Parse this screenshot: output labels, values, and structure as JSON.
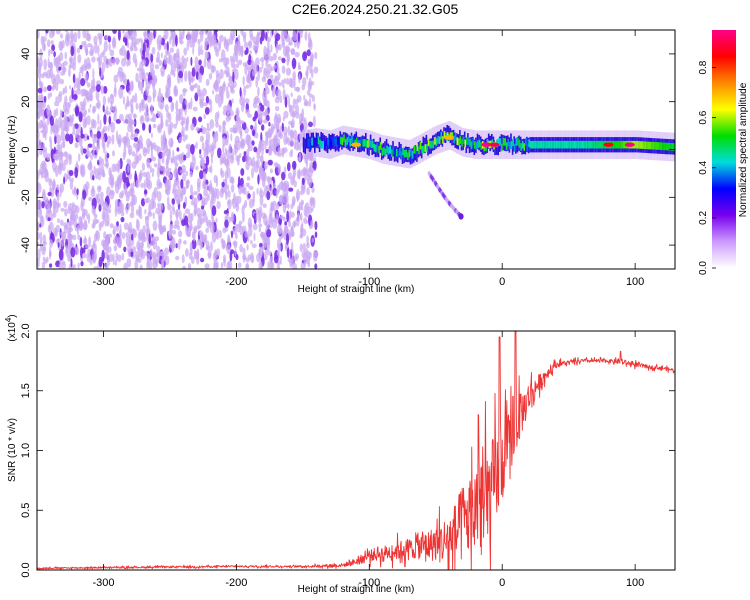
{
  "title": "C2E6.2024.250.21.32.G05",
  "colors": {
    "snr_line": "#ee3333",
    "spectrogram_low": "#e6d6f6",
    "spectrogram_mid": "#7722dd",
    "spectrogram_peak": "#ff2222",
    "axis": "#000000"
  },
  "chart_data": [
    {
      "type": "heatmap",
      "title": "C2E6.2024.250.21.32.G05",
      "xlabel": "Height of straight line (km)",
      "ylabel": "Frequency (Hz)",
      "xlim": [
        -350,
        130
      ],
      "ylim": [
        -50,
        50
      ],
      "x_ticks": [
        -300,
        -200,
        -100,
        0,
        100
      ],
      "y_ticks": [
        -40,
        -20,
        0,
        20,
        40
      ],
      "grid": false,
      "colorbar": {
        "label": "Normalized spectral amplitude",
        "range": [
          0,
          0.95
        ],
        "ticks": [
          0.0,
          0.2,
          0.4,
          0.6,
          0.8
        ],
        "colormap": [
          "#ffffff",
          "#cc99ff",
          "#7700ee",
          "#0000ff",
          "#00dddd",
          "#00dd00",
          "#ffff00",
          "#ff8800",
          "#ff0000",
          "#ff0088"
        ]
      },
      "noise_region": {
        "x_range": [
          -350,
          -140
        ],
        "y_range": [
          -50,
          50
        ],
        "amplitude": [
          0.05,
          0.2
        ]
      },
      "signal_track": {
        "x": [
          -150,
          -140,
          -130,
          -120,
          -110,
          -100,
          -90,
          -80,
          -70,
          -60,
          -50,
          -40,
          -30,
          -20,
          -10,
          0,
          20,
          40,
          60,
          80,
          100,
          130
        ],
        "frequency": [
          2,
          3,
          2,
          4,
          3,
          2,
          0,
          -1,
          -2,
          1,
          4,
          6,
          3,
          2,
          2,
          2,
          2,
          2,
          2,
          2,
          2,
          1
        ],
        "amplitude": [
          0.25,
          0.4,
          0.4,
          0.45,
          0.45,
          0.5,
          0.45,
          0.45,
          0.45,
          0.5,
          0.5,
          0.5,
          0.5,
          0.5,
          0.55,
          0.5,
          0.45,
          0.45,
          0.45,
          0.5,
          0.6,
          0.5
        ]
      },
      "hot_spots": [
        {
          "x": -110,
          "frequency": 2,
          "amplitude": 0.7
        },
        {
          "x": -40,
          "frequency": 5,
          "amplitude": 0.7
        },
        {
          "x": -12,
          "frequency": 2,
          "amplitude": 0.95
        },
        {
          "x": -6,
          "frequency": 2,
          "amplitude": 0.9
        },
        {
          "x": 80,
          "frequency": 2,
          "amplitude": 0.85
        },
        {
          "x": 96,
          "frequency": 2,
          "amplitude": 0.95
        }
      ],
      "secondary_track": {
        "x": [
          -55,
          -48,
          -42,
          -36,
          -31
        ],
        "frequency": [
          -10,
          -16,
          -21,
          -25,
          -28
        ],
        "amplitude": [
          0.2,
          0.2,
          0.2,
          0.25,
          0.3
        ]
      }
    },
    {
      "type": "line",
      "xlabel": "Height of straight line (km)",
      "ylabel": "SNR (10 * v/v)",
      "y_multiplier_label": "(x10",
      "y_multiplier_exponent": "4",
      "y_multiplier_close": ")",
      "xlim": [
        -350,
        130
      ],
      "ylim": [
        0,
        2.0
      ],
      "x_ticks": [
        -300,
        -200,
        -100,
        0,
        100
      ],
      "y_ticks": [
        0.0,
        0.5,
        1.0,
        1.5,
        2.0
      ],
      "grid": false,
      "series": [
        {
          "envelope_x": [
            -350,
            -300,
            -250,
            -200,
            -150,
            -120,
            -110,
            -100,
            -90,
            -80,
            -70,
            -60,
            -50,
            -40,
            -35,
            -30,
            -25,
            -20,
            -15,
            -10,
            -5,
            0,
            5,
            10,
            15,
            20,
            30,
            40,
            60,
            80,
            90,
            100,
            110,
            120,
            130
          ],
          "envelope_y": [
            0.015,
            0.02,
            0.025,
            0.03,
            0.03,
            0.04,
            0.07,
            0.12,
            0.14,
            0.16,
            0.18,
            0.2,
            0.22,
            0.25,
            0.3,
            0.38,
            0.45,
            0.5,
            0.55,
            0.62,
            0.75,
            0.9,
            1.05,
            1.2,
            1.32,
            1.45,
            1.6,
            1.72,
            1.75,
            1.75,
            1.74,
            1.72,
            1.7,
            1.69,
            1.67
          ],
          "noise_amplitude": [
            0.01,
            0.012,
            0.015,
            0.015,
            0.015,
            0.03,
            0.06,
            0.1,
            0.12,
            0.15,
            0.18,
            0.22,
            0.3,
            0.45,
            0.55,
            0.65,
            0.7,
            0.8,
            0.85,
            0.85,
            0.8,
            0.6,
            0.55,
            0.45,
            0.35,
            0.25,
            0.12,
            0.05,
            0.03,
            0.03,
            0.04,
            0.04,
            0.03,
            0.03,
            0.03
          ],
          "spikes": [
            {
              "x": -18,
              "y": 1.3
            },
            {
              "x": -2,
              "y": 1.95
            },
            {
              "x": 10,
              "y": 2.0
            },
            {
              "x": 89,
              "y": 1.83
            }
          ]
        }
      ]
    }
  ]
}
